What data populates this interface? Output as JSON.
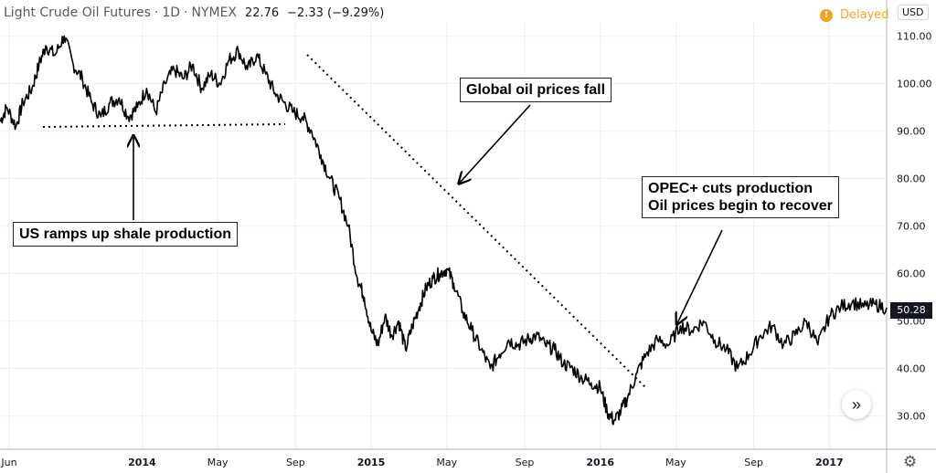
{
  "header": {
    "symbol": "Light Crude Oil Futures",
    "interval": "1D",
    "exchange": "NYMEX",
    "last": "22.76",
    "change": "−2.33 (−9.29%)"
  },
  "delayed": {
    "badge": "!",
    "label": "Delayed"
  },
  "currency": "USD",
  "price_tag": "50.28",
  "scroll_icon": "»",
  "gear_icon": "⚙",
  "annotations": {
    "shale": "US ramps up shale production",
    "fall": "Global oil prices fall",
    "opec_line1": "OPEC+ cuts production",
    "opec_line2": "Oil prices begin to recover"
  },
  "colors": {
    "series": "#000000",
    "grid": "#eceff2",
    "axis": "#131722",
    "accent": "#f7a21b"
  },
  "chart_data": {
    "type": "line",
    "title": "Light Crude Oil Futures · 1D · NYMEX",
    "ylabel": "USD",
    "ylim": [
      23,
      113
    ],
    "yticks": [
      30,
      40,
      50,
      60,
      70,
      80,
      90,
      100,
      110
    ],
    "xlim": [
      2013.38,
      2017.25
    ],
    "xticks": [
      {
        "t": 2013.42,
        "label": "Jun"
      },
      {
        "t": 2014.0,
        "label": "2014"
      },
      {
        "t": 2014.33,
        "label": "May"
      },
      {
        "t": 2014.67,
        "label": "Sep"
      },
      {
        "t": 2015.0,
        "label": "2015"
      },
      {
        "t": 2015.33,
        "label": "May"
      },
      {
        "t": 2015.67,
        "label": "Sep"
      },
      {
        "t": 2016.0,
        "label": "2016"
      },
      {
        "t": 2016.33,
        "label": "May"
      },
      {
        "t": 2016.67,
        "label": "Sep"
      },
      {
        "t": 2017.0,
        "label": "2017"
      }
    ],
    "series": [
      {
        "name": "Light Crude Oil Futures",
        "x": [
          2013.38,
          2013.41,
          2013.45,
          2013.48,
          2013.52,
          2013.55,
          2013.58,
          2013.62,
          2013.66,
          2013.7,
          2013.74,
          2013.78,
          2013.82,
          2013.86,
          2013.9,
          2013.94,
          2013.98,
          2014.02,
          2014.06,
          2014.1,
          2014.14,
          2014.18,
          2014.22,
          2014.26,
          2014.3,
          2014.34,
          2014.38,
          2014.42,
          2014.46,
          2014.5,
          2014.54,
          2014.58,
          2014.62,
          2014.66,
          2014.7,
          2014.74,
          2014.78,
          2014.82,
          2014.86,
          2014.9,
          2014.94,
          2014.97,
          2015.0,
          2015.03,
          2015.06,
          2015.09,
          2015.12,
          2015.15,
          2015.18,
          2015.21,
          2015.24,
          2015.27,
          2015.3,
          2015.33,
          2015.36,
          2015.4,
          2015.44,
          2015.48,
          2015.52,
          2015.56,
          2015.6,
          2015.64,
          2015.68,
          2015.72,
          2015.76,
          2015.8,
          2015.84,
          2015.88,
          2015.92,
          2015.96,
          2016.0,
          2016.03,
          2016.06,
          2016.09,
          2016.12,
          2016.16,
          2016.2,
          2016.25,
          2016.3,
          2016.35,
          2016.4,
          2016.45,
          2016.5,
          2016.55,
          2016.6,
          2016.65,
          2016.7,
          2016.75,
          2016.8,
          2016.85,
          2016.9,
          2016.95,
          2017.0,
          2017.05,
          2017.1,
          2017.15,
          2017.2,
          2017.25
        ],
        "y": [
          92,
          95,
          91,
          96,
          99,
          104,
          108,
          106,
          110,
          104,
          101,
          96,
          93,
          96,
          97,
          93,
          95,
          99,
          94,
          100,
          103,
          101,
          104,
          99,
          102,
          100,
          105,
          107,
          103,
          106,
          102,
          98,
          96,
          94,
          93,
          90,
          85,
          80,
          76,
          70,
          59,
          55,
          48,
          45,
          51,
          47,
          50,
          44,
          49,
          53,
          57,
          59,
          60,
          61,
          58,
          52,
          48,
          44,
          40,
          43,
          46,
          45,
          46,
          47,
          45,
          44,
          41,
          40,
          38,
          37,
          36,
          31,
          29,
          31,
          34,
          39,
          43,
          46,
          45,
          49,
          48,
          50,
          46,
          44,
          40,
          43,
          47,
          49,
          45,
          47,
          50,
          45,
          51,
          53,
          54,
          53,
          53.5,
          52.8
        ]
      }
    ]
  }
}
